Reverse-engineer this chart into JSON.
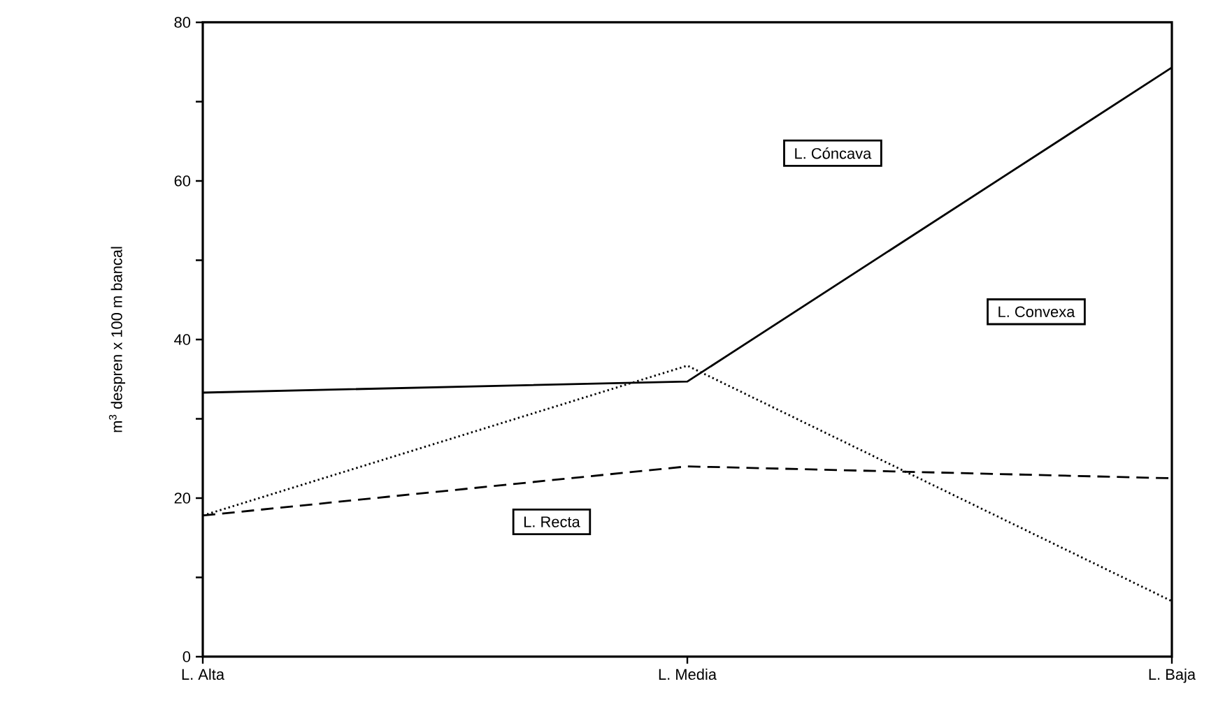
{
  "chart_data": {
    "type": "line",
    "ylabel": "m$^{3}$ despren x 100 m bancal",
    "categories": [
      "L. Alta",
      "L. Media",
      "L. Baja"
    ],
    "series": [
      {
        "color": "#000000",
        "line_style": "solid",
        "values": [
          33.3,
          34.7,
          74.3
        ]
      },
      {
        "color": "#000000",
        "line_style": "dotted",
        "values": [
          17.8,
          36.7,
          7.0
        ]
      },
      {
        "color": "#000000",
        "line_style": "dashed",
        "values": [
          17.8,
          24.0,
          22.5
        ]
      }
    ],
    "ylim": [
      0,
      80
    ],
    "yticks": [
      0,
      {
        "value": 10,
        "label": null
      },
      20,
      {
        "value": 30,
        "label": null
      },
      40,
      {
        "value": 50,
        "label": null
      },
      60,
      {
        "value": 70,
        "label": null
      },
      80
    ],
    "annotations": [
      "L. Cóncava",
      "L. Convexa",
      "L. Recta"
    ],
    "marker": "none"
  }
}
